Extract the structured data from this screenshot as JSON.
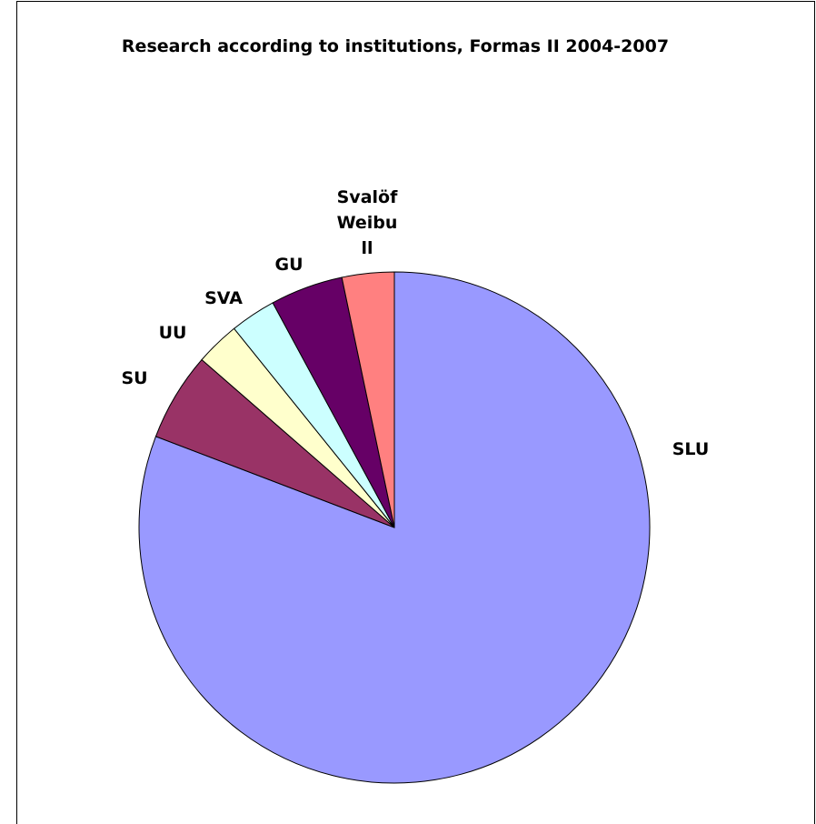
{
  "chart_data": {
    "type": "pie",
    "title": "Research according to institutions, Formas II 2004-2007",
    "categories": [
      "SLU",
      "SU",
      "UU",
      "SVA",
      "GU",
      "Svalöf Weibull"
    ],
    "values": [
      80.8,
      5.6,
      2.8,
      2.9,
      4.6,
      3.3
    ],
    "colors": [
      "#9999ff",
      "#993366",
      "#ffffcc",
      "#ccffff",
      "#660066",
      "#ff8080"
    ]
  }
}
